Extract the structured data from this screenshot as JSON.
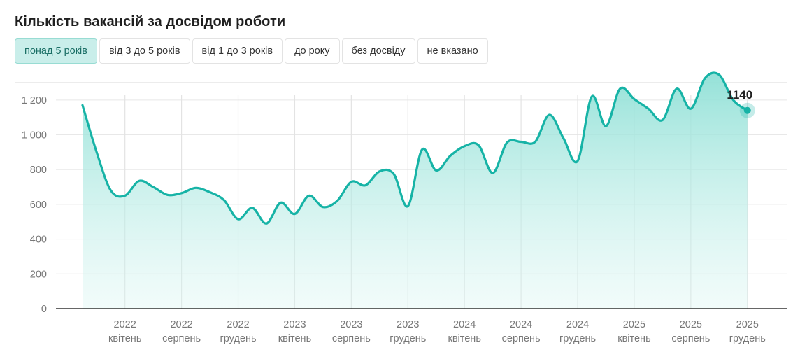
{
  "title": "Кількість вакансій за досвідом роботи",
  "tabs": [
    {
      "label": "понад 5 років",
      "active": true
    },
    {
      "label": "від 3 до 5 років",
      "active": false
    },
    {
      "label": "від 1 до 3 років",
      "active": false
    },
    {
      "label": "до року",
      "active": false
    },
    {
      "label": "без досвіду",
      "active": false
    },
    {
      "label": "не вказано",
      "active": false
    }
  ],
  "colors": {
    "line": "#16b3a6",
    "fill": "#8fe0d6",
    "active_tab_bg": "#c9eeea"
  },
  "chart_data": {
    "type": "area",
    "title": "",
    "xlabel": "",
    "ylabel": "",
    "ylim": [
      0,
      1300
    ],
    "yticks": [
      0,
      200,
      400,
      600,
      800,
      1000,
      1200
    ],
    "ytick_labels": [
      "0",
      "200",
      "400",
      "600",
      "800",
      "1 000",
      "1 200"
    ],
    "grid": true,
    "x_tick_labels": [
      {
        "year": "2022",
        "month": "квітень"
      },
      {
        "year": "2022",
        "month": "серпень"
      },
      {
        "year": "2022",
        "month": "грудень"
      },
      {
        "year": "2023",
        "month": "квітень"
      },
      {
        "year": "2023",
        "month": "серпень"
      },
      {
        "year": "2023",
        "month": "грудень"
      },
      {
        "year": "2024",
        "month": "квітень"
      },
      {
        "year": "2024",
        "month": "серпень"
      },
      {
        "year": "2024",
        "month": "грудень"
      },
      {
        "year": "2025",
        "month": "квітень"
      },
      {
        "year": "2025",
        "month": "серпень"
      },
      {
        "year": "2025",
        "month": "грудень"
      }
    ],
    "x_tick_positions": [
      3,
      7,
      11,
      15,
      19,
      23,
      27,
      31,
      35,
      39,
      43,
      47
    ],
    "x_range": [
      0,
      48
    ],
    "series": [
      {
        "values": [
          [
            0,
            1170
          ],
          [
            1,
            900
          ],
          [
            2,
            680
          ],
          [
            3,
            650
          ],
          [
            4,
            735
          ],
          [
            5,
            700
          ],
          [
            6,
            655
          ],
          [
            7,
            665
          ],
          [
            8,
            695
          ],
          [
            9,
            670
          ],
          [
            10,
            625
          ],
          [
            11,
            515
          ],
          [
            12,
            580
          ],
          [
            13,
            490
          ],
          [
            14,
            610
          ],
          [
            15,
            545
          ],
          [
            16,
            650
          ],
          [
            17,
            585
          ],
          [
            18,
            620
          ],
          [
            19,
            730
          ],
          [
            20,
            710
          ],
          [
            21,
            790
          ],
          [
            22,
            775
          ],
          [
            23,
            590
          ],
          [
            24,
            915
          ],
          [
            25,
            795
          ],
          [
            26,
            880
          ],
          [
            27,
            935
          ],
          [
            28,
            940
          ],
          [
            29,
            780
          ],
          [
            30,
            955
          ],
          [
            31,
            960
          ],
          [
            32,
            960
          ],
          [
            33,
            1115
          ],
          [
            34,
            980
          ],
          [
            35,
            850
          ],
          [
            36,
            1220
          ],
          [
            37,
            1050
          ],
          [
            38,
            1265
          ],
          [
            39,
            1205
          ],
          [
            40,
            1150
          ],
          [
            41,
            1085
          ],
          [
            42,
            1265
          ],
          [
            43,
            1150
          ],
          [
            44,
            1325
          ],
          [
            45,
            1345
          ],
          [
            46,
            1200
          ],
          [
            47,
            1140
          ]
        ]
      }
    ],
    "annotations": [
      {
        "x": 47,
        "y": 1140,
        "label": "1140"
      }
    ]
  }
}
